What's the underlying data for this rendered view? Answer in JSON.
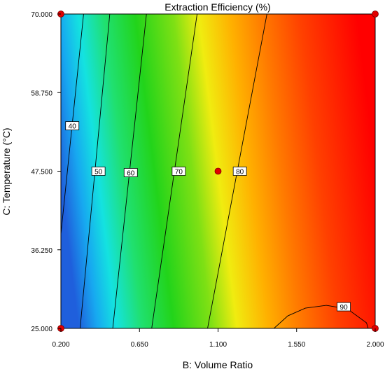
{
  "chart_data": {
    "type": "contour",
    "title": "Extraction Efficiency (%)",
    "xlabel": "B: Volume Ratio",
    "ylabel": "C: Temperature (°C)",
    "xlim": [
      0.2,
      2.0
    ],
    "ylim": [
      25.0,
      70.0
    ],
    "x_ticks": [
      "0.200",
      "0.650",
      "1.100",
      "1.550",
      "2.000"
    ],
    "y_ticks": [
      "25.000",
      "36.250",
      "47.500",
      "58.750",
      "70.000"
    ],
    "x_tick_values": [
      0.2,
      0.65,
      1.1,
      1.55,
      2.0
    ],
    "y_tick_values": [
      25.0,
      36.25,
      47.5,
      58.75,
      70.0
    ],
    "color_scale": {
      "low": "#1f5fdc",
      "mid": "#22d41a",
      "high": "#ff0000"
    },
    "contours": [
      {
        "level": "40",
        "points": [
          [
            0.2,
            38.5
          ],
          [
            0.33,
            70.0
          ]
        ],
        "label_at": [
          0.265,
          54.0
        ]
      },
      {
        "level": "50",
        "points": [
          [
            0.31,
            25.0
          ],
          [
            0.48,
            70.0
          ]
        ],
        "label_at": [
          0.415,
          47.5
        ]
      },
      {
        "level": "60",
        "points": [
          [
            0.497,
            25.0
          ],
          [
            0.69,
            70.0
          ]
        ],
        "label_at": [
          0.6,
          47.3
        ]
      },
      {
        "level": "70",
        "points": [
          [
            0.72,
            25.0
          ],
          [
            0.98,
            70.0
          ]
        ],
        "label_at": [
          0.875,
          47.5
        ]
      },
      {
        "level": "80",
        "points": [
          [
            1.04,
            25.0
          ],
          [
            1.38,
            70.0
          ]
        ],
        "label_at": [
          1.225,
          47.5
        ]
      },
      {
        "level": "90",
        "points": [
          [
            1.42,
            25.0
          ],
          [
            1.5,
            26.8
          ],
          [
            1.6,
            27.9
          ],
          [
            1.72,
            28.3
          ],
          [
            1.84,
            27.8
          ],
          [
            1.95,
            25.8
          ],
          [
            1.96,
            25.0
          ]
        ],
        "label_at": [
          1.82,
          28.1
        ]
      }
    ],
    "design_points": [
      {
        "x": 0.2,
        "y": 70.0
      },
      {
        "x": 2.0,
        "y": 70.0
      },
      {
        "x": 0.2,
        "y": 25.0
      },
      {
        "x": 2.0,
        "y": 25.0
      },
      {
        "x": 1.1,
        "y": 47.5
      }
    ]
  }
}
